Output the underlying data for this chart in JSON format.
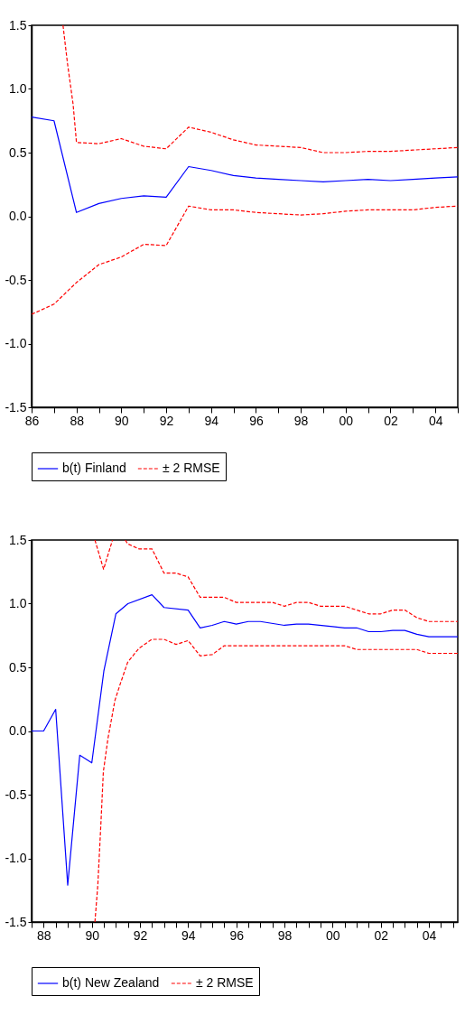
{
  "chart_data": [
    {
      "type": "line",
      "legend": "bottom",
      "x": [
        1986,
        1987,
        1988,
        1989,
        1990,
        1991,
        1992,
        1993,
        1994,
        1995,
        1996,
        1997,
        1998,
        1999,
        2000,
        2001,
        2002,
        2003,
        2004,
        2005
      ],
      "xlim": [
        1986,
        2005
      ],
      "xticks": [
        {
          "value": 1986,
          "label": "86"
        },
        {
          "value": 1987,
          "label": null
        },
        {
          "value": 1988,
          "label": "88"
        },
        {
          "value": 1989,
          "label": null
        },
        {
          "value": 1990,
          "label": "90"
        },
        {
          "value": 1991,
          "label": null
        },
        {
          "value": 1992,
          "label": "92"
        },
        {
          "value": 1993,
          "label": null
        },
        {
          "value": 1994,
          "label": "94"
        },
        {
          "value": 1995,
          "label": null
        },
        {
          "value": 1996,
          "label": "96"
        },
        {
          "value": 1997,
          "label": null
        },
        {
          "value": 1998,
          "label": "98"
        },
        {
          "value": 1999,
          "label": null
        },
        {
          "value": 2000,
          "label": "00"
        },
        {
          "value": 2001,
          "label": null
        },
        {
          "value": 2002,
          "label": "02"
        },
        {
          "value": 2003,
          "label": null
        },
        {
          "value": 2004,
          "label": "04"
        },
        {
          "value": 2005,
          "label": null
        }
      ],
      "ylim": [
        -1.5,
        1.5
      ],
      "yticks": [
        {
          "value": -1.5,
          "label": "-1.5"
        },
        {
          "value": -1,
          "label": "-1.0"
        },
        {
          "value": -0.5,
          "label": "-0.5"
        },
        {
          "value": 0,
          "label": "0.0"
        },
        {
          "value": 0.5,
          "label": "0.5"
        },
        {
          "value": 1,
          "label": "1.0"
        },
        {
          "value": 1.5,
          "label": "1.5"
        }
      ],
      "series": [
        {
          "name": "b(t) Finland",
          "color": "#0000ff",
          "line_style": "solid",
          "values": [
            0.78,
            0.75,
            0.03,
            0.1,
            0.14,
            0.16,
            0.15,
            0.39,
            0.36,
            0.32,
            0.3,
            0.29,
            0.28,
            0.27,
            0.28,
            0.29,
            0.28,
            0.29,
            0.3,
            0.31
          ]
        },
        {
          "name": "± 2 RMSE",
          "color": "#ff0000",
          "line_style": "dashed",
          "x": [
            1987.4,
            1987.6,
            1987.85,
            1988,
            1989,
            1990,
            1991,
            1992,
            1993,
            1994,
            1995,
            1996,
            1997,
            1998,
            1999,
            2000,
            2001,
            2002,
            2003,
            2004,
            2005
          ],
          "values": [
            1.5,
            1.2,
            0.88,
            0.58,
            0.57,
            0.61,
            0.55,
            0.53,
            0.7,
            0.66,
            0.6,
            0.56,
            0.55,
            0.54,
            0.5,
            0.5,
            0.51,
            0.51,
            0.52,
            0.53,
            0.54
          ]
        },
        {
          "color": "#ff0000",
          "line_style": "dashed",
          "values": [
            -0.77,
            -0.69,
            -0.52,
            -0.38,
            -0.32,
            -0.22,
            -0.23,
            0.08,
            0.05,
            0.05,
            0.03,
            0.02,
            0.01,
            0.02,
            0.04,
            0.05,
            0.05,
            0.05,
            0.07,
            0.08
          ]
        }
      ]
    },
    {
      "type": "line",
      "legend": "bottom",
      "x": [
        1987.5,
        1988,
        1988.5,
        1989,
        1989.5,
        1990,
        1990.5,
        1991,
        1991.5,
        1992.5,
        1993,
        1994,
        1994.5,
        1995,
        1995.5,
        1996,
        1996.5,
        1997,
        1998,
        1998.5,
        1999,
        2000,
        2000.5,
        2001,
        2001.5,
        2002,
        2002.5,
        2003,
        2003.5,
        2004,
        2005.2
      ],
      "xlim": [
        1987.5,
        2005.2
      ],
      "xticks": [
        {
          "value": 1987.5,
          "label": null
        },
        {
          "value": 1988,
          "label": "88"
        },
        {
          "value": 1988.5,
          "label": null
        },
        {
          "value": 1989,
          "label": null
        },
        {
          "value": 1989.5,
          "label": null
        },
        {
          "value": 1990,
          "label": "90"
        },
        {
          "value": 1990.5,
          "label": null
        },
        {
          "value": 1991,
          "label": null
        },
        {
          "value": 1991.5,
          "label": null
        },
        {
          "value": 1992,
          "label": "92"
        },
        {
          "value": 1992.5,
          "label": null
        },
        {
          "value": 1993,
          "label": null
        },
        {
          "value": 1993.5,
          "label": null
        },
        {
          "value": 1994,
          "label": "94"
        },
        {
          "value": 1994.5,
          "label": null
        },
        {
          "value": 1995,
          "label": null
        },
        {
          "value": 1995.5,
          "label": null
        },
        {
          "value": 1996,
          "label": "96"
        },
        {
          "value": 1996.5,
          "label": null
        },
        {
          "value": 1997,
          "label": null
        },
        {
          "value": 1997.5,
          "label": null
        },
        {
          "value": 1998,
          "label": "98"
        },
        {
          "value": 1998.5,
          "label": null
        },
        {
          "value": 1999,
          "label": null
        },
        {
          "value": 1999.5,
          "label": null
        },
        {
          "value": 2000,
          "label": "00"
        },
        {
          "value": 2000.5,
          "label": null
        },
        {
          "value": 2001,
          "label": null
        },
        {
          "value": 2001.5,
          "label": null
        },
        {
          "value": 2002,
          "label": "02"
        },
        {
          "value": 2002.5,
          "label": null
        },
        {
          "value": 2003,
          "label": null
        },
        {
          "value": 2003.5,
          "label": null
        },
        {
          "value": 2004,
          "label": "04"
        },
        {
          "value": 2004.5,
          "label": null
        },
        {
          "value": 2005,
          "label": null
        }
      ],
      "ylim": [
        -1.5,
        1.5
      ],
      "yticks": [
        {
          "value": -1.5,
          "label": "-1.5"
        },
        {
          "value": -1,
          "label": "-1.0"
        },
        {
          "value": -0.5,
          "label": "-0.5"
        },
        {
          "value": 0,
          "label": "0.0"
        },
        {
          "value": 0.5,
          "label": "0.5"
        },
        {
          "value": 1,
          "label": "1.0"
        },
        {
          "value": 1.5,
          "label": "1.5"
        }
      ],
      "series": [
        {
          "name": "b(t) New Zealand",
          "color": "#0000ff",
          "line_style": "solid",
          "values": [
            0,
            0,
            0.17,
            -1.21,
            -0.19,
            -0.25,
            0.47,
            0.92,
            1.0,
            1.07,
            0.97,
            0.95,
            0.81,
            0.83,
            0.86,
            0.84,
            0.86,
            0.86,
            0.83,
            0.84,
            0.84,
            0.82,
            0.81,
            0.81,
            0.78,
            0.78,
            0.79,
            0.79,
            0.76,
            0.74,
            0.74
          ]
        },
        {
          "name": "± 2 RMSE",
          "color": "#ff0000",
          "line_style": "dashed",
          "x": [
            1990.13,
            1990.49,
            1990.86,
            1991.1,
            1991.39,
            1991.49,
            1991.96,
            1992.5,
            1993,
            1993.5,
            1994,
            1994.5,
            1995.5,
            1996,
            1997.5,
            1998,
            1998.5,
            1999,
            1999.5,
            2000.5,
            2001,
            2001.5,
            2002,
            2002.5,
            2003,
            2003.5,
            2004,
            2005.2
          ],
          "values": [
            1.5,
            1.27,
            1.5,
            null,
            1.5,
            1.47,
            1.43,
            1.43,
            1.24,
            1.24,
            1.21,
            1.05,
            1.05,
            1.01,
            1.01,
            0.98,
            1.01,
            1.01,
            0.98,
            0.98,
            0.95,
            0.92,
            0.92,
            0.95,
            0.95,
            0.89,
            0.86,
            0.86
          ]
        },
        {
          "color": "#ff0000",
          "line_style": "dashed",
          "x": [
            1990.13,
            1990.25,
            1990.38,
            1990.48,
            1990.67,
            1990.96,
            1991.2,
            1991.49,
            1991.96,
            1992.5,
            1993,
            1993.5,
            1994,
            1994.5,
            1995,
            1995.5,
            2000.5,
            2001,
            2003.5,
            2004,
            2005.2
          ],
          "values": [
            -1.5,
            -1.21,
            -0.72,
            -0.32,
            -0.06,
            0.24,
            0.38,
            0.54,
            0.65,
            0.72,
            0.72,
            0.68,
            0.71,
            0.59,
            0.6,
            0.67,
            0.67,
            0.64,
            0.64,
            0.61,
            0.61
          ]
        }
      ]
    }
  ]
}
